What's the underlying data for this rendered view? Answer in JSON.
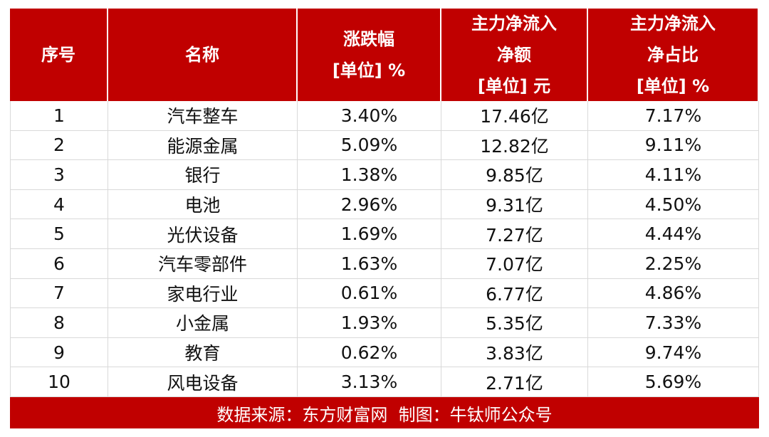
{
  "table": {
    "headers": [
      [
        "序号"
      ],
      [
        "名称"
      ],
      [
        "涨跌幅",
        "[单位] %"
      ],
      [
        "主力净流入",
        "净额",
        "[单位] 元"
      ],
      [
        "主力净流入",
        "净占比",
        "[单位] %"
      ]
    ],
    "rows": [
      [
        "1",
        "汽车整车",
        "3.40%",
        "17.46亿",
        "7.17%"
      ],
      [
        "2",
        "能源金属",
        "5.09%",
        "12.82亿",
        "9.11%"
      ],
      [
        "3",
        "银行",
        "1.38%",
        "9.85亿",
        "4.11%"
      ],
      [
        "4",
        "电池",
        "2.96%",
        "9.31亿",
        "4.50%"
      ],
      [
        "5",
        "光伏设备",
        "1.69%",
        "7.27亿",
        "4.44%"
      ],
      [
        "6",
        "汽车零部件",
        "1.63%",
        "7.07亿",
        "2.25%"
      ],
      [
        "7",
        "家电行业",
        "0.61%",
        "6.77亿",
        "4.86%"
      ],
      [
        "8",
        "小金属",
        "1.93%",
        "5.35亿",
        "7.33%"
      ],
      [
        "9",
        "教育",
        "0.62%",
        "3.83亿",
        "9.74%"
      ],
      [
        "10",
        "风电设备",
        "3.13%",
        "2.71亿",
        "5.69%"
      ]
    ],
    "footer": "数据来源：东方财富网  制图：牛钛师公众号"
  }
}
